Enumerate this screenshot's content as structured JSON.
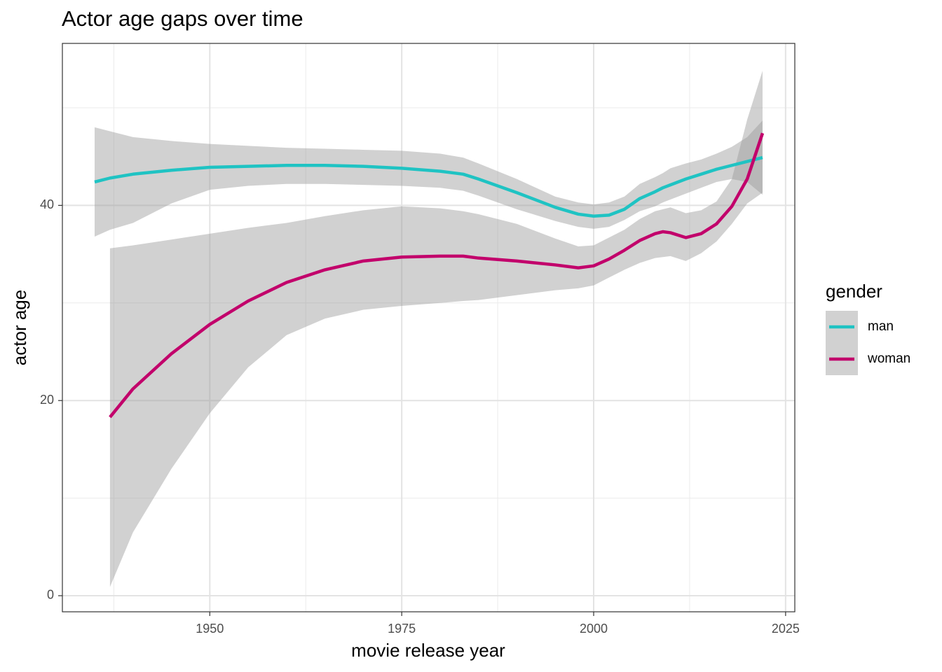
{
  "chart_data": {
    "type": "line",
    "title": "Actor age gaps over time",
    "x_label": "movie release year",
    "y_label": "actor age",
    "legend_title": "gender",
    "legend_position": "right",
    "grid": true,
    "band_color": "#999999",
    "xlim": [
      1930.8,
      2026.2
    ],
    "ylim": [
      -1.65,
      56.6
    ],
    "xticks": [
      1950,
      1975,
      2000,
      2025
    ],
    "yticks": [
      0,
      20,
      40
    ],
    "minor_xticks": [
      1937.5,
      1962.5,
      1987.5,
      2012.5
    ],
    "minor_yticks": [
      10,
      30,
      50
    ],
    "x": [
      1935,
      1937,
      1940,
      1945,
      1950,
      1955,
      1960,
      1965,
      1970,
      1975,
      1980,
      1983,
      1985,
      1990,
      1995,
      1998,
      2000,
      2002,
      2004,
      2006,
      2008,
      2009,
      2010,
      2012,
      2014,
      2016,
      2018,
      2020,
      2022
    ],
    "series": [
      {
        "name": "man",
        "color": "#1fc3c3",
        "values": [
          42.4,
          42.8,
          43.2,
          43.6,
          43.9,
          44.0,
          44.1,
          44.1,
          44.0,
          43.8,
          43.5,
          43.2,
          42.7,
          41.3,
          39.8,
          39.1,
          38.9,
          39.0,
          39.6,
          40.7,
          41.4,
          41.8,
          42.1,
          42.7,
          43.2,
          43.7,
          44.1,
          44.5,
          44.9
        ],
        "upper": [
          48.0,
          47.6,
          47.0,
          46.6,
          46.3,
          46.1,
          45.9,
          45.8,
          45.7,
          45.6,
          45.3,
          44.9,
          44.3,
          42.7,
          40.9,
          40.3,
          40.1,
          40.3,
          40.9,
          42.2,
          42.9,
          43.3,
          43.8,
          44.3,
          44.7,
          45.3,
          46.0,
          47.0,
          48.7
        ],
        "lower": [
          36.8,
          37.5,
          38.2,
          40.2,
          41.6,
          42.0,
          42.2,
          42.2,
          42.1,
          42.0,
          41.8,
          41.5,
          41.0,
          39.6,
          38.4,
          37.8,
          37.6,
          37.8,
          38.5,
          39.4,
          39.9,
          40.3,
          40.6,
          41.2,
          41.8,
          42.4,
          42.7,
          42.4,
          41.1
        ]
      },
      {
        "name": "woman",
        "color": "#c2006b",
        "values": [
          null,
          18.3,
          21.2,
          24.8,
          27.8,
          30.2,
          32.1,
          33.4,
          34.3,
          34.7,
          34.8,
          34.8,
          34.6,
          34.3,
          33.9,
          33.6,
          33.8,
          34.5,
          35.4,
          36.4,
          37.1,
          37.3,
          37.2,
          36.7,
          37.1,
          38.1,
          39.9,
          42.7,
          47.4
        ],
        "upper": [
          null,
          35.6,
          35.9,
          36.5,
          37.1,
          37.7,
          38.2,
          38.9,
          39.5,
          39.9,
          39.7,
          39.4,
          39.1,
          38.1,
          36.6,
          35.8,
          35.9,
          36.7,
          37.5,
          38.6,
          39.4,
          39.6,
          39.8,
          39.2,
          39.5,
          40.4,
          42.7,
          48.8,
          53.8
        ],
        "lower": [
          null,
          0.9,
          6.5,
          13.0,
          18.7,
          23.4,
          26.7,
          28.4,
          29.3,
          29.7,
          30.0,
          30.2,
          30.3,
          30.8,
          31.3,
          31.5,
          31.8,
          32.6,
          33.4,
          34.1,
          34.6,
          34.7,
          34.8,
          34.3,
          35.1,
          36.3,
          38.1,
          40.2,
          41.3
        ]
      }
    ]
  }
}
